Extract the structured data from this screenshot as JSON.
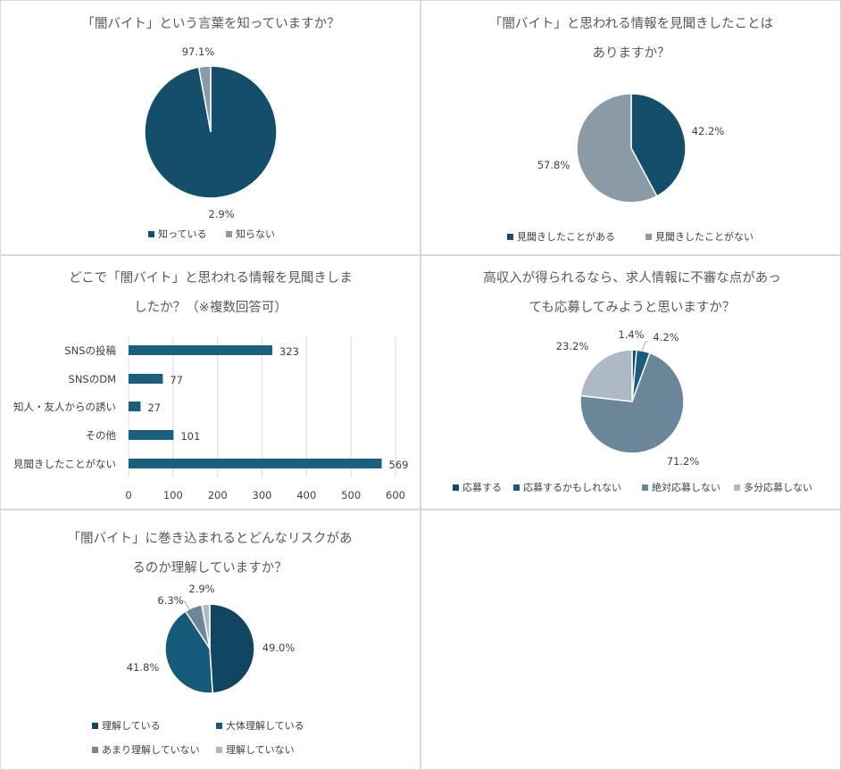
{
  "colors": {
    "c1": "#114a64",
    "c2": "#165c7c",
    "c3": "#6b8599",
    "c4": "#adb9c4",
    "gray": "#8a9aa6"
  },
  "chart_data": [
    {
      "type": "pie",
      "title": [
        "「闇バイト」という言葉を知っていますか？"
      ],
      "slices": [
        {
          "name": "知っている",
          "value": 97.1,
          "label": "97.1%",
          "color": "#134f6a"
        },
        {
          "name": "知らない",
          "value": 2.9,
          "label": "2.9%",
          "color": "#8a9aa6"
        }
      ],
      "legend": "bottom"
    },
    {
      "type": "pie",
      "title": [
        "「闇バイト」と思われる情報を見聞きしたことは",
        "ありますか？"
      ],
      "slices": [
        {
          "name": "見聞きしたことがある",
          "value": 42.2,
          "label": "42.2%",
          "color": "#134f6a"
        },
        {
          "name": "見聞きしたことがない",
          "value": 57.8,
          "label": "57.8%",
          "color": "#8a9aa6"
        }
      ],
      "legend": "bottom"
    },
    {
      "type": "bar",
      "orientation": "horizontal",
      "title": [
        "どこで「闇バイト」と思われる情報を見聞きしま",
        "したか？（※複数回答可）"
      ],
      "categories": [
        "SNSの投稿",
        "SNSのDM",
        "知人・友人からの誘い",
        "その他",
        "見聞きしたことがない"
      ],
      "values": [
        323,
        77,
        27,
        101,
        569
      ],
      "xlim": [
        0,
        600
      ],
      "xticks": [
        "0",
        "100",
        "200",
        "300",
        "400",
        "500",
        "600"
      ],
      "grid": true,
      "color": "#19607f"
    },
    {
      "type": "pie",
      "title": [
        "高収入が得られるなら、求人情報に不審な点があっ",
        "ても応募してみようと思いますか？"
      ],
      "slices": [
        {
          "name": "応募する",
          "value": 1.4,
          "label": "1.4%",
          "color": "#114a64"
        },
        {
          "name": "応募するかもしれない",
          "value": 4.2,
          "label": "4.2%",
          "color": "#165c7c"
        },
        {
          "name": "絶対応募しない",
          "value": 71.2,
          "label": "71.2%",
          "color": "#6b8599"
        },
        {
          "name": "多分応募しない",
          "value": 23.2,
          "label": "23.2%",
          "color": "#adb9c4"
        }
      ],
      "legend": "bottom"
    },
    {
      "type": "pie",
      "title": [
        "「闇バイト」に巻き込まれるとどんなリスクがあ",
        "るのか理解していますか？"
      ],
      "slices": [
        {
          "name": "理解している",
          "value": 49.0,
          "label": "49.0%",
          "color": "#114660"
        },
        {
          "name": "大体理解している",
          "value": 41.8,
          "label": "41.8%",
          "color": "#155a78"
        },
        {
          "name": "あまり理解していない",
          "value": 6.3,
          "label": "6.3%",
          "color": "#6e8698"
        },
        {
          "name": "理解していない",
          "value": 2.9,
          "label": "2.9%",
          "color": "#afbac4"
        }
      ],
      "legend": "bottom"
    }
  ]
}
